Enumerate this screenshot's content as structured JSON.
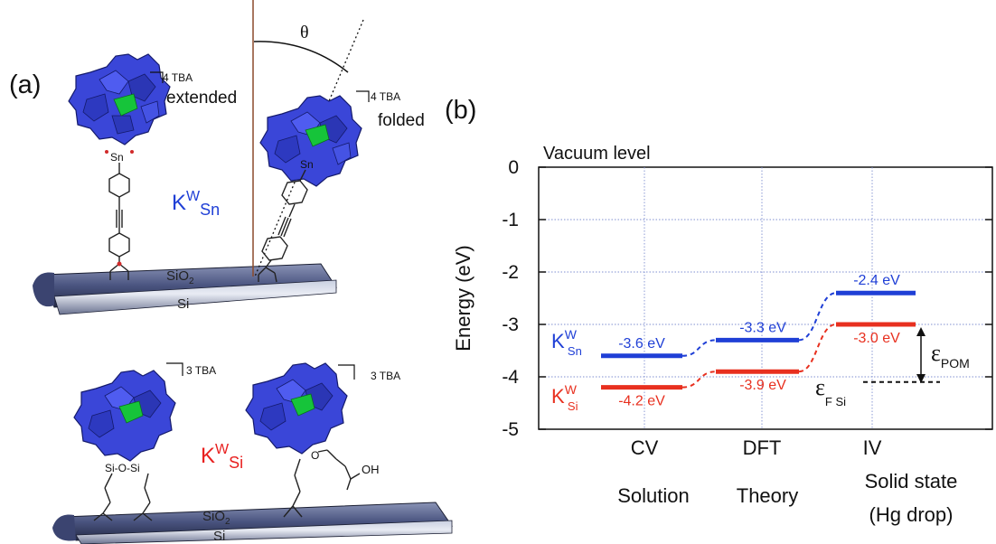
{
  "panel_a": {
    "label": "(a)",
    "angle_symbol": "θ",
    "top_left": {
      "counter_ion": "4 TBA",
      "state": "extended",
      "substrate_top": "SiO",
      "substrate_top_sub": "2",
      "substrate_bottom": "Si",
      "metal": "Sn"
    },
    "top_right": {
      "counter_ion": "4 TBA",
      "state": "folded",
      "substrate_top": "SiO",
      "substrate_top_sub": "2",
      "metal": "Sn"
    },
    "compound_sn": {
      "base": "K",
      "sup": "W",
      "sub": "Sn",
      "color": "#1f3fd6"
    },
    "compound_si": {
      "base": "K",
      "sup": "W",
      "sub": "Si",
      "color": "#e8201f"
    },
    "bottom_left": {
      "counter_ion": "3 TBA",
      "linker": "Si-O-Si",
      "substrate_top": "SiO",
      "substrate_top_sub": "2",
      "substrate_bottom": "Si"
    },
    "bottom_right": {
      "counter_ion": "3 TBA",
      "acid": "OH",
      "atom_o": "O"
    }
  },
  "panel_b": {
    "label": "(b)",
    "y_axis_label": "Energy (eV)",
    "vacuum_label": "Vacuum level",
    "y_ticks": [
      "0",
      "-1",
      "-2",
      "-3",
      "-4",
      "-5"
    ],
    "categories": [
      "CV",
      "DFT",
      "IV"
    ],
    "category_notes": [
      "Solution",
      "Theory",
      "Solid state"
    ],
    "category_notes_2": [
      "",
      "",
      "(Hg drop)"
    ],
    "legend_sn": {
      "base": "K",
      "sup": "W",
      "sub": "Sn"
    },
    "legend_si": {
      "base": "K",
      "sup": "W",
      "sub": "Si"
    },
    "eps_pom": {
      "symbol": "ε",
      "sub": "POM"
    },
    "eps_f": {
      "symbol": "ε",
      "sub": "F Si"
    },
    "colors": {
      "sn": "#1f3fd6",
      "si": "#e8301f",
      "grid": "#7f8fd0"
    }
  },
  "chart_data": {
    "type": "line",
    "ylabel": "Energy (eV)",
    "ylim": [
      -5,
      0
    ],
    "categories": [
      "CV",
      "DFT",
      "IV"
    ],
    "series": [
      {
        "name": "KWSn",
        "values": [
          -3.6,
          -3.3,
          -2.4
        ],
        "labels": [
          "-3.6 eV",
          "-3.3 eV",
          "-2.4 eV"
        ],
        "color": "#1f3fd6"
      },
      {
        "name": "KWSi",
        "values": [
          -4.2,
          -3.9,
          -3.0
        ],
        "labels": [
          "-4.2 eV",
          "-3.9 eV",
          "-3.0 eV"
        ],
        "color": "#e8301f"
      }
    ],
    "reference_level": {
      "value": -4.1
    },
    "grid": true
  }
}
